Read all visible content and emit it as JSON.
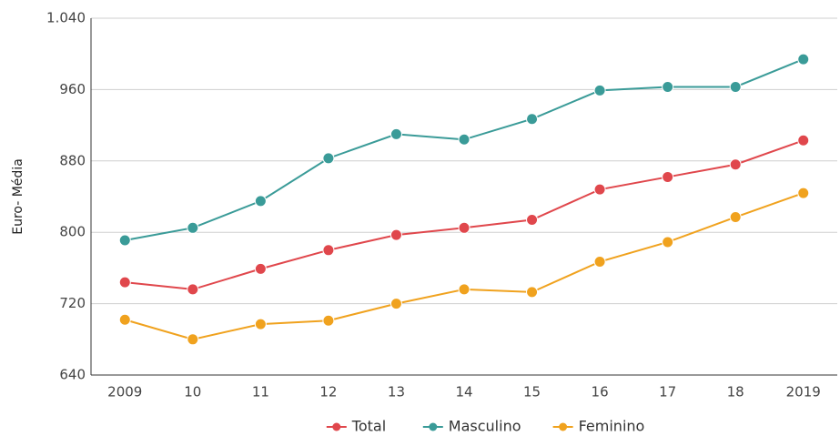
{
  "chart_data": {
    "type": "line",
    "y_label": "Euro- Média",
    "categories": [
      "2009",
      "10",
      "11",
      "12",
      "13",
      "14",
      "15",
      "16",
      "17",
      "18",
      "2019"
    ],
    "series": [
      {
        "name": "Total",
        "color": "#e0474c",
        "values": [
          744,
          736,
          759,
          780,
          797,
          805,
          814,
          848,
          862,
          876,
          903
        ]
      },
      {
        "name": "Masculino",
        "color": "#3a9b98",
        "values": [
          791,
          805,
          835,
          883,
          910,
          904,
          927,
          959,
          963,
          963,
          994
        ]
      },
      {
        "name": "Feminino",
        "color": "#f0a21e",
        "values": [
          702,
          680,
          697,
          701,
          720,
          736,
          733,
          767,
          789,
          817,
          844
        ]
      }
    ],
    "ylim": [
      640,
      1040
    ],
    "yticks": [
      640,
      720,
      800,
      880,
      960,
      {
        "value": 1040,
        "label": "1.040"
      }
    ],
    "grid": true
  }
}
